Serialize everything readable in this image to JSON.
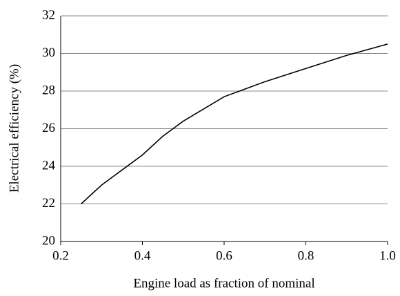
{
  "chart_data": {
    "type": "line",
    "x_label": "Engine load as fraction of nominal",
    "y_label": "Electrical efficiency (%)",
    "series": [
      {
        "color": "#000000",
        "x": [
          0.25,
          0.3,
          0.35,
          0.4,
          0.45,
          0.5,
          0.6,
          0.7,
          0.8,
          0.9,
          1
        ],
        "values": [
          22,
          23,
          23.8,
          24.6,
          25.6,
          26.4,
          27.7,
          28.5,
          29.2,
          29.9,
          30.5
        ]
      }
    ],
    "xlim": [
      0.2,
      1
    ],
    "xticks": [
      0.2,
      0.4,
      0.6,
      0.8,
      {
        "value": 1,
        "label": "1.0"
      }
    ],
    "ylim": [
      20,
      32
    ],
    "yticks": [
      20,
      22,
      24,
      26,
      28,
      30,
      32
    ],
    "grid": true
  }
}
